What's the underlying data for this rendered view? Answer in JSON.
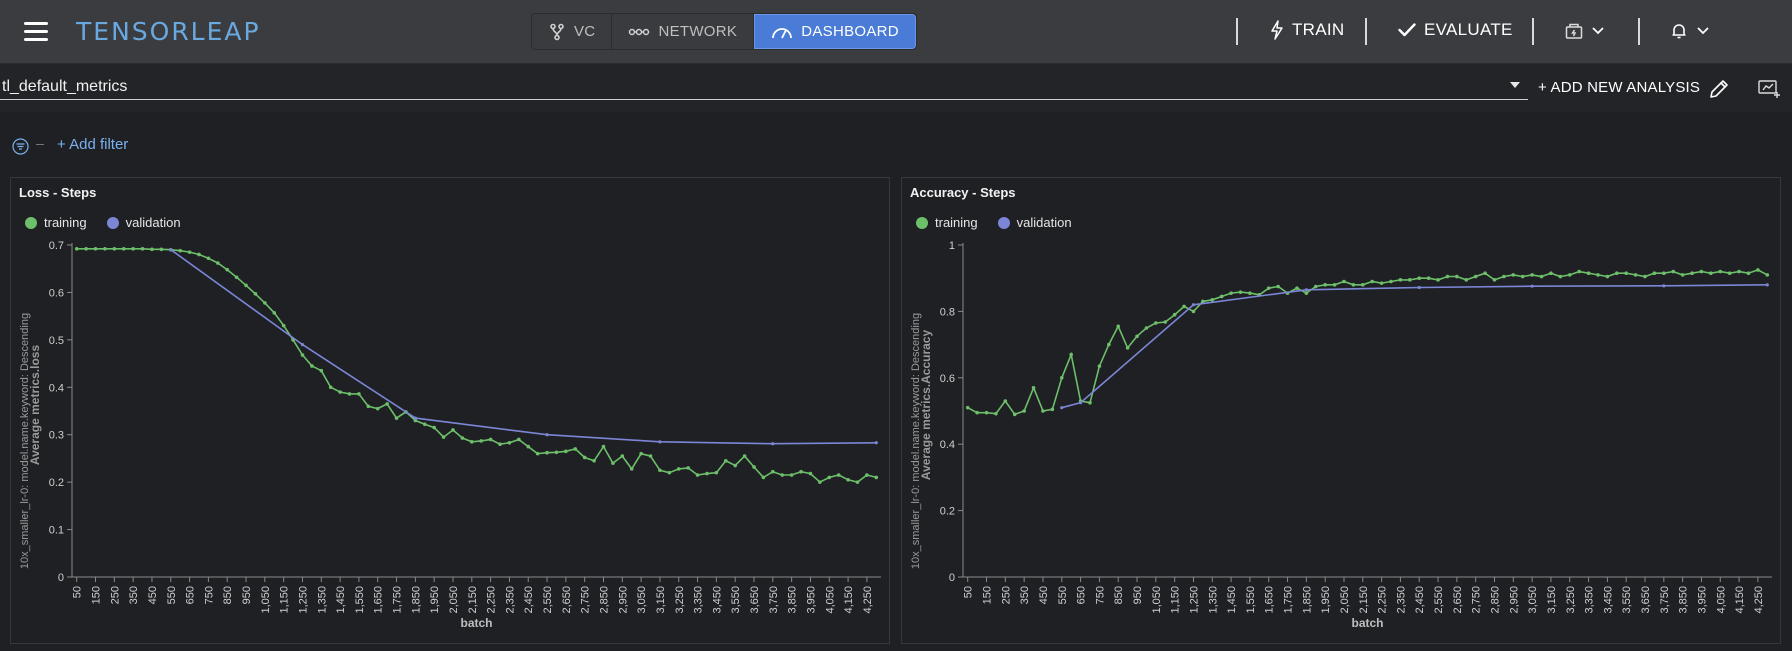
{
  "app": {
    "logo": "TENSORLEAP",
    "tabs": [
      {
        "label": "VC",
        "icon": "branch-icon"
      },
      {
        "label": "NETWORK",
        "icon": "network-icon"
      },
      {
        "label": "DASHBOARD",
        "icon": "gauge-icon",
        "active": true
      }
    ],
    "actions": {
      "train": "TRAIN",
      "evaluate": "EVALUATE"
    }
  },
  "dashboard": {
    "selected": "tl_default_metrics",
    "add_analysis": "+ ADD NEW ANALYSIS",
    "add_filter": "+ Add filter"
  },
  "colors": {
    "accent": "#4a7bd6",
    "training": "#6dbf6a",
    "validation": "#7b86d6",
    "link": "#7ab0f0"
  },
  "chart_data": [
    {
      "type": "line",
      "title": "Loss - Steps",
      "xlabel": "batch",
      "ylabel_1": "10x_smaller_lr-0: model.name.keyword: Descending",
      "ylabel_2": "Average metrics.loss",
      "ylim": [
        0,
        0.7
      ],
      "yticks": [
        "0",
        "0.1",
        "0.2",
        "0.3",
        "0.4",
        "0.5",
        "0.6",
        "0.7"
      ],
      "xticks": [
        "50",
        "150",
        "250",
        "350",
        "450",
        "550",
        "650",
        "750",
        "850",
        "950",
        "1,050",
        "1,150",
        "1,250",
        "1,350",
        "1,450",
        "1,550",
        "1,650",
        "1,750",
        "1,850",
        "1,950",
        "2,050",
        "2,150",
        "2,250",
        "2,350",
        "2,450",
        "2,550",
        "2,650",
        "2,750",
        "2,850",
        "2,950",
        "3,050",
        "3,150",
        "3,250",
        "3,350",
        "3,450",
        "3,550",
        "3,650",
        "3,750",
        "3,850",
        "3,950",
        "4,050",
        "4,150",
        "4,250"
      ],
      "legend": "top-left",
      "series": [
        {
          "name": "training",
          "x": [
            50,
            100,
            150,
            200,
            250,
            300,
            350,
            400,
            450,
            500,
            550,
            600,
            650,
            700,
            750,
            800,
            850,
            900,
            950,
            1000,
            1050,
            1100,
            1150,
            1200,
            1250,
            1300,
            1350,
            1400,
            1450,
            1500,
            1550,
            1600,
            1650,
            1700,
            1750,
            1800,
            1850,
            1900,
            1950,
            2000,
            2050,
            2100,
            2150,
            2200,
            2250,
            2300,
            2350,
            2400,
            2450,
            2500,
            2550,
            2600,
            2650,
            2700,
            2750,
            2800,
            2850,
            2900,
            2950,
            3000,
            3050,
            3100,
            3150,
            3200,
            3250,
            3300,
            3350,
            3400,
            3450,
            3500,
            3550,
            3600,
            3650,
            3700,
            3750,
            3800,
            3850,
            3900,
            3950,
            4000,
            4050,
            4100,
            4150,
            4200,
            4250,
            4300
          ],
          "values": [
            0.692,
            0.692,
            0.692,
            0.692,
            0.692,
            0.692,
            0.692,
            0.692,
            0.691,
            0.691,
            0.69,
            0.688,
            0.685,
            0.68,
            0.672,
            0.662,
            0.648,
            0.632,
            0.615,
            0.597,
            0.578,
            0.557,
            0.53,
            0.5,
            0.468,
            0.445,
            0.435,
            0.4,
            0.39,
            0.386,
            0.386,
            0.36,
            0.355,
            0.365,
            0.335,
            0.348,
            0.33,
            0.322,
            0.315,
            0.295,
            0.31,
            0.293,
            0.285,
            0.287,
            0.29,
            0.28,
            0.283,
            0.29,
            0.275,
            0.26,
            0.262,
            0.263,
            0.265,
            0.27,
            0.252,
            0.245,
            0.275,
            0.24,
            0.255,
            0.228,
            0.26,
            0.255,
            0.225,
            0.22,
            0.228,
            0.23,
            0.215,
            0.218,
            0.22,
            0.245,
            0.235,
            0.255,
            0.232,
            0.21,
            0.222,
            0.215,
            0.215,
            0.222,
            0.218,
            0.2,
            0.21,
            0.215,
            0.205,
            0.2,
            0.215,
            0.21
          ]
        },
        {
          "name": "validation",
          "x": [
            550,
            1250,
            1850,
            2550,
            3150,
            3750,
            4300
          ],
          "values": [
            0.69,
            0.49,
            0.335,
            0.3,
            0.285,
            0.281,
            0.283
          ]
        }
      ]
    },
    {
      "type": "line",
      "title": "Accuracy - Steps",
      "xlabel": "batch",
      "ylabel_1": "10x_smaller_lr-0: model.name.keyword: Descending",
      "ylabel_2": "Average metrics.Accuracy",
      "ylim": [
        0,
        1
      ],
      "yticks": [
        "0",
        "0.2",
        "0.4",
        "0.6",
        "0.8",
        "1"
      ],
      "xticks": [
        "50",
        "150",
        "250",
        "350",
        "450",
        "550",
        "650",
        "750",
        "850",
        "950",
        "1,050",
        "1,150",
        "1,250",
        "1,350",
        "1,450",
        "1,550",
        "1,650",
        "1,750",
        "1,850",
        "1,950",
        "2,050",
        "2,150",
        "2,250",
        "2,350",
        "2,450",
        "2,550",
        "2,650",
        "2,750",
        "2,850",
        "2,950",
        "3,050",
        "3,150",
        "3,250",
        "3,350",
        "3,450",
        "3,550",
        "3,650",
        "3,750",
        "3,850",
        "3,950",
        "4,050",
        "4,150",
        "4,250"
      ],
      "legend": "top-left",
      "series": [
        {
          "name": "training",
          "x": [
            50,
            100,
            150,
            200,
            250,
            300,
            350,
            400,
            450,
            500,
            550,
            600,
            650,
            700,
            750,
            800,
            850,
            900,
            950,
            1000,
            1050,
            1100,
            1150,
            1200,
            1250,
            1300,
            1350,
            1400,
            1450,
            1500,
            1550,
            1600,
            1650,
            1700,
            1750,
            1800,
            1850,
            1900,
            1950,
            2000,
            2050,
            2100,
            2150,
            2200,
            2250,
            2300,
            2350,
            2400,
            2450,
            2500,
            2550,
            2600,
            2650,
            2700,
            2750,
            2800,
            2850,
            2900,
            2950,
            3000,
            3050,
            3100,
            3150,
            3200,
            3250,
            3300,
            3350,
            3400,
            3450,
            3500,
            3550,
            3600,
            3650,
            3700,
            3750,
            3800,
            3850,
            3900,
            3950,
            4000,
            4050,
            4100,
            4150,
            4200,
            4250,
            4300
          ],
          "values": [
            0.51,
            0.495,
            0.495,
            0.492,
            0.53,
            0.49,
            0.5,
            0.57,
            0.5,
            0.505,
            0.6,
            0.67,
            0.53,
            0.525,
            0.635,
            0.7,
            0.755,
            0.69,
            0.725,
            0.75,
            0.765,
            0.768,
            0.79,
            0.815,
            0.8,
            0.83,
            0.835,
            0.845,
            0.855,
            0.858,
            0.855,
            0.85,
            0.87,
            0.875,
            0.855,
            0.87,
            0.855,
            0.875,
            0.88,
            0.88,
            0.89,
            0.88,
            0.88,
            0.89,
            0.885,
            0.89,
            0.895,
            0.895,
            0.9,
            0.9,
            0.895,
            0.905,
            0.905,
            0.895,
            0.905,
            0.915,
            0.895,
            0.905,
            0.91,
            0.905,
            0.91,
            0.905,
            0.915,
            0.905,
            0.91,
            0.92,
            0.915,
            0.91,
            0.905,
            0.915,
            0.915,
            0.91,
            0.905,
            0.915,
            0.915,
            0.92,
            0.91,
            0.915,
            0.92,
            0.915,
            0.92,
            0.915,
            0.92,
            0.915,
            0.925,
            0.91
          ]
        },
        {
          "name": "validation",
          "x": [
            550,
            650,
            1250,
            1850,
            2450,
            3050,
            3750,
            4300
          ],
          "values": [
            0.51,
            0.525,
            0.82,
            0.865,
            0.872,
            0.876,
            0.877,
            0.88
          ]
        }
      ]
    }
  ]
}
